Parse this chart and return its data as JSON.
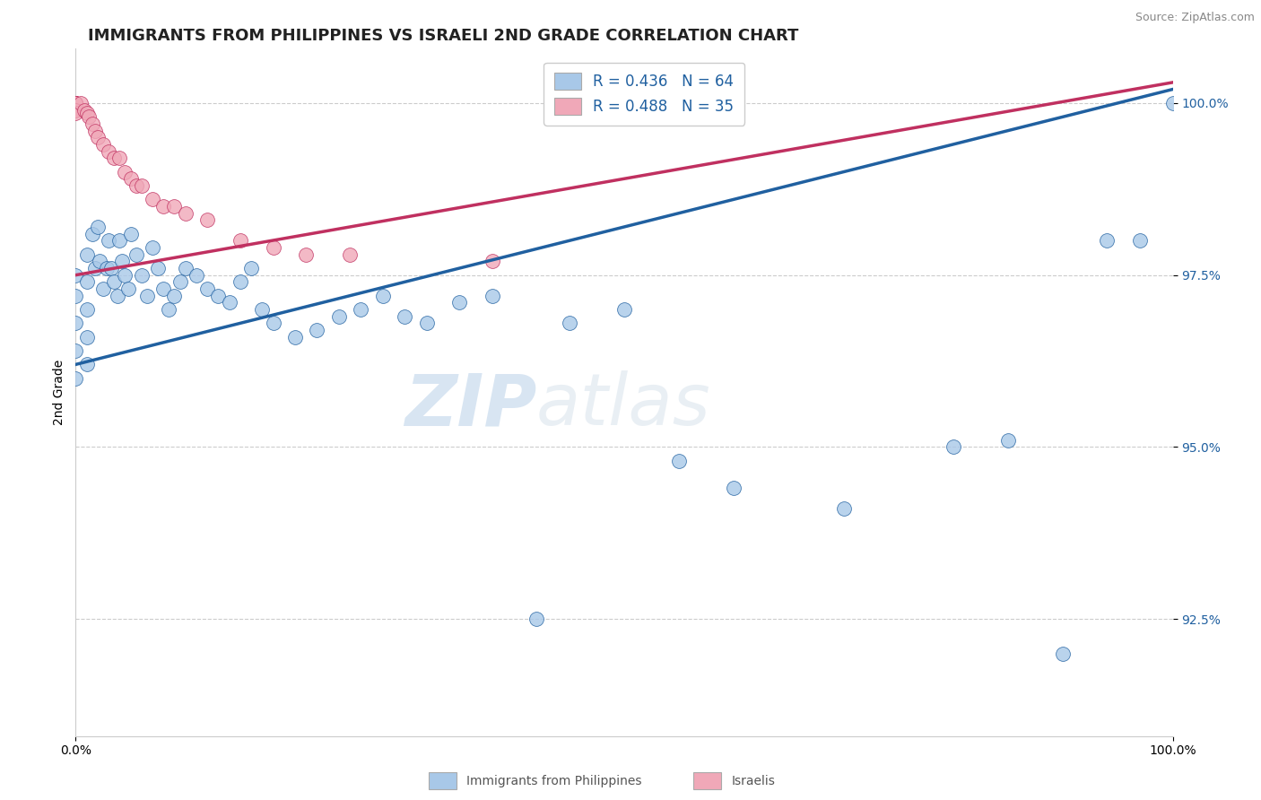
{
  "title": "IMMIGRANTS FROM PHILIPPINES VS ISRAELI 2ND GRADE CORRELATION CHART",
  "source": "Source: ZipAtlas.com",
  "ylabel": "2nd Grade",
  "legend_blue_label": "R = 0.436   N = 64",
  "legend_pink_label": "R = 0.488   N = 35",
  "dot_blue_color": "#a8c8e8",
  "dot_pink_color": "#f0a8b8",
  "line_blue_color": "#2060a0",
  "line_pink_color": "#c03060",
  "xlim": [
    0.0,
    1.0
  ],
  "ylim": [
    0.908,
    1.008
  ],
  "yticks": [
    0.925,
    0.95,
    0.975,
    1.0
  ],
  "ytick_labels": [
    "92.5%",
    "95.0%",
    "97.5%",
    "100.0%"
  ],
  "xticks": [
    0.0,
    1.0
  ],
  "xtick_labels": [
    "0.0%",
    "100.0%"
  ],
  "grid_color": "#cccccc",
  "background_color": "#ffffff",
  "title_fontsize": 13,
  "axis_label_fontsize": 10,
  "tick_fontsize": 10,
  "legend_fontsize": 12,
  "blue_line_x0": 0.0,
  "blue_line_x1": 1.0,
  "blue_line_y0": 0.962,
  "blue_line_y1": 1.002,
  "pink_line_x0": 0.0,
  "pink_line_x1": 1.0,
  "pink_line_y0": 0.975,
  "pink_line_y1": 1.003,
  "blue_points_x": [
    0.0,
    0.0,
    0.0,
    0.0,
    0.0,
    0.01,
    0.01,
    0.01,
    0.01,
    0.01,
    0.015,
    0.018,
    0.02,
    0.022,
    0.025,
    0.028,
    0.03,
    0.032,
    0.035,
    0.038,
    0.04,
    0.042,
    0.045,
    0.048,
    0.05,
    0.055,
    0.06,
    0.065,
    0.07,
    0.075,
    0.08,
    0.085,
    0.09,
    0.095,
    0.1,
    0.11,
    0.12,
    0.13,
    0.14,
    0.15,
    0.16,
    0.17,
    0.18,
    0.2,
    0.22,
    0.24,
    0.26,
    0.28,
    0.3,
    0.32,
    0.35,
    0.38,
    0.42,
    0.45,
    0.5,
    0.55,
    0.6,
    0.7,
    0.8,
    0.85,
    0.9,
    0.94,
    0.97,
    1.0
  ],
  "blue_points_y": [
    0.975,
    0.972,
    0.968,
    0.964,
    0.96,
    0.978,
    0.974,
    0.97,
    0.966,
    0.962,
    0.981,
    0.976,
    0.982,
    0.977,
    0.973,
    0.976,
    0.98,
    0.976,
    0.974,
    0.972,
    0.98,
    0.977,
    0.975,
    0.973,
    0.981,
    0.978,
    0.975,
    0.972,
    0.979,
    0.976,
    0.973,
    0.97,
    0.972,
    0.974,
    0.976,
    0.975,
    0.973,
    0.972,
    0.971,
    0.974,
    0.976,
    0.97,
    0.968,
    0.966,
    0.967,
    0.969,
    0.97,
    0.972,
    0.969,
    0.968,
    0.971,
    0.972,
    0.925,
    0.968,
    0.97,
    0.948,
    0.944,
    0.941,
    0.95,
    0.951,
    0.92,
    0.98,
    0.98,
    1.0
  ],
  "pink_points_x": [
    0.0,
    0.0,
    0.0,
    0.0,
    0.0,
    0.0,
    0.0,
    0.0,
    0.0,
    0.0,
    0.005,
    0.008,
    0.01,
    0.012,
    0.015,
    0.018,
    0.02,
    0.025,
    0.03,
    0.035,
    0.04,
    0.045,
    0.05,
    0.055,
    0.06,
    0.07,
    0.08,
    0.09,
    0.1,
    0.12,
    0.15,
    0.18,
    0.21,
    0.25,
    0.38
  ],
  "pink_points_y": [
    1.0,
    1.0,
    1.0,
    1.0,
    1.0,
    1.0,
    1.0,
    0.999,
    0.999,
    0.9985,
    1.0,
    0.999,
    0.9985,
    0.998,
    0.997,
    0.996,
    0.995,
    0.994,
    0.993,
    0.992,
    0.992,
    0.99,
    0.989,
    0.988,
    0.988,
    0.986,
    0.985,
    0.985,
    0.984,
    0.983,
    0.98,
    0.979,
    0.978,
    0.978,
    0.977
  ]
}
